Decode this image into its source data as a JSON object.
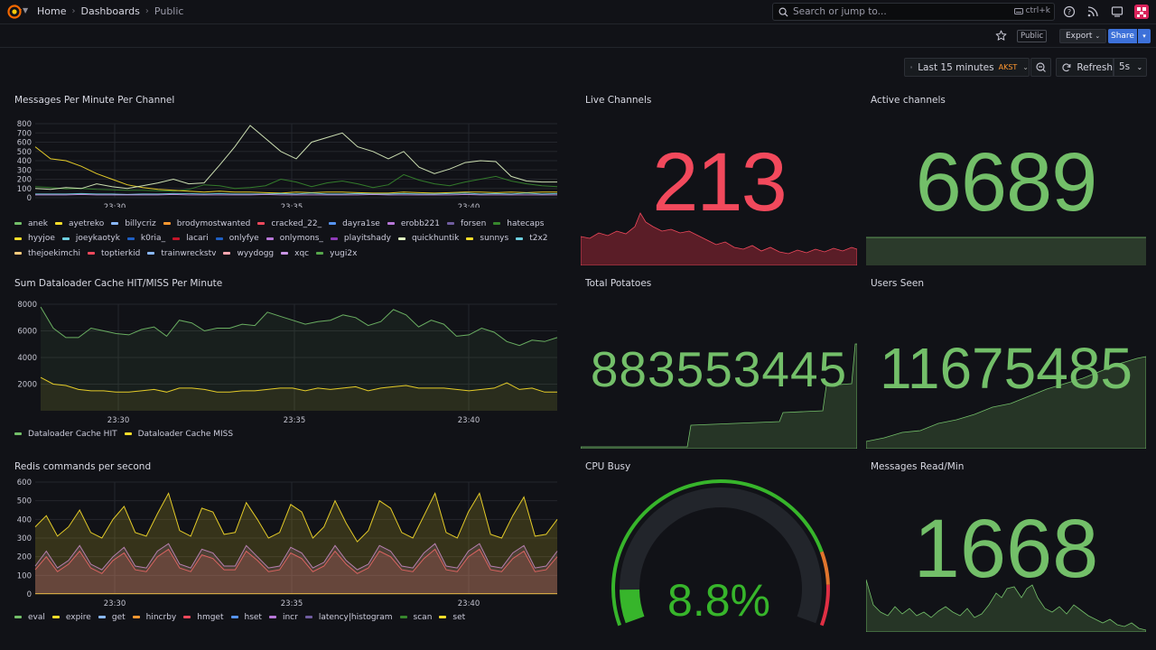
{
  "nav": {
    "breadcrumbs": [
      "Home",
      "Dashboards",
      "Public"
    ],
    "search_placeholder": "Search or jump to...",
    "search_shortcut": "ctrl+k",
    "public_badge": "Public",
    "export_label": "Export",
    "share_label": "Share"
  },
  "time": {
    "range_label": "Last 15 minutes",
    "timezone": "AKST",
    "refresh_label": "Refresh",
    "interval": "5s"
  },
  "panels": {
    "messages_per_minute": {
      "title": "Messages Per Minute Per Channel",
      "legend": [
        {
          "name": "anek",
          "color": "#73bf69"
        },
        {
          "name": "ayetreko",
          "color": "#fade2a"
        },
        {
          "name": "billycriz",
          "color": "#8ab8ff"
        },
        {
          "name": "brodymostwanted",
          "color": "#ff9830"
        },
        {
          "name": "cracked_22_",
          "color": "#f2495c"
        },
        {
          "name": "dayra1se",
          "color": "#5794f2"
        },
        {
          "name": "erobb221",
          "color": "#b877d9"
        },
        {
          "name": "forsen",
          "color": "#705da0"
        },
        {
          "name": "hatecaps",
          "color": "#37872d"
        },
        {
          "name": "hyyjoe",
          "color": "#fade2a"
        },
        {
          "name": "joeykaotyk",
          "color": "#6ed0e0"
        },
        {
          "name": "k0ria_",
          "color": "#1f60c4"
        },
        {
          "name": "lacari",
          "color": "#c4162a"
        },
        {
          "name": "onlyfye",
          "color": "#1f60c4"
        },
        {
          "name": "onlymons_",
          "color": "#b877d9"
        },
        {
          "name": "playitshady",
          "color": "#8f3bb8"
        },
        {
          "name": "quickhuntik",
          "color": "#e0f5c2"
        },
        {
          "name": "sunnys",
          "color": "#fade2a"
        },
        {
          "name": "t2x2",
          "color": "#6ed0e0"
        },
        {
          "name": "thejoekimchi",
          "color": "#ffcb7d"
        },
        {
          "name": "toptiеrkid",
          "color": "#f2495c"
        },
        {
          "name": "trainwreckstv",
          "color": "#8ab8ff"
        },
        {
          "name": "wyydogg",
          "color": "#ffa6b0"
        },
        {
          "name": "xqc",
          "color": "#ca95e5"
        },
        {
          "name": "yugi2x",
          "color": "#56a64b"
        }
      ]
    },
    "dataloader": {
      "title": "Sum Dataloader Cache HIT/MISS Per Minute",
      "legend": [
        {
          "name": "Dataloader Cache HIT",
          "color": "#73bf69"
        },
        {
          "name": "Dataloader Cache MISS",
          "color": "#fade2a"
        }
      ]
    },
    "redis": {
      "title": "Redis commands per second",
      "legend": [
        {
          "name": "eval",
          "color": "#73bf69"
        },
        {
          "name": "expire",
          "color": "#fade2a"
        },
        {
          "name": "get",
          "color": "#8ab8ff"
        },
        {
          "name": "hincrby",
          "color": "#ff9830"
        },
        {
          "name": "hmget",
          "color": "#f2495c"
        },
        {
          "name": "hset",
          "color": "#5794f2"
        },
        {
          "name": "incr",
          "color": "#b877d9"
        },
        {
          "name": "latency|histogram",
          "color": "#705da0"
        },
        {
          "name": "scan",
          "color": "#37872d"
        },
        {
          "name": "set",
          "color": "#fade2a"
        }
      ]
    },
    "live_channels": {
      "title": "Live Channels",
      "value": "213",
      "color": "#f2495c"
    },
    "active_channels": {
      "title": "Active channels",
      "value": "6689",
      "color": "#73bf69"
    },
    "total_potatoes": {
      "title": "Total Potatoes",
      "value": "883553445",
      "color": "#73bf69"
    },
    "users_seen": {
      "title": "Users Seen",
      "value": "11675485",
      "color": "#73bf69"
    },
    "cpu_busy": {
      "title": "CPU Busy",
      "value": "8.8%",
      "value_fraction": 0.088,
      "color": "#37b52b"
    },
    "messages_read": {
      "title": "Messages Read/Min",
      "value": "1668",
      "color": "#73bf69"
    }
  },
  "chart_data": [
    {
      "type": "line",
      "title": "Messages Per Minute Per Channel",
      "ylim": [
        0,
        800
      ],
      "yticks": [
        "0",
        "100",
        "200",
        "300",
        "400",
        "500",
        "600",
        "700",
        "800"
      ],
      "xticks": [
        "23:30",
        "23:35",
        "23:40"
      ],
      "series": [
        {
          "name": "hatecaps",
          "values": [
            120,
            110,
            95,
            100,
            90,
            85,
            80,
            80,
            75,
            70,
            90,
            140,
            130,
            100,
            110,
            130,
            200,
            170,
            120,
            160,
            180,
            150,
            110,
            140,
            250,
            190,
            150,
            130,
            170,
            200,
            230,
            180,
            150,
            130,
            120
          ]
        },
        {
          "name": "sunnys",
          "values": [
            550,
            420,
            400,
            340,
            260,
            200,
            140,
            110,
            90,
            80,
            70,
            60,
            70,
            60,
            60,
            55,
            50,
            60,
            55,
            60,
            60,
            55,
            50,
            50,
            60,
            55,
            50,
            55,
            60,
            60,
            55,
            60,
            55,
            60,
            60
          ]
        },
        {
          "name": "quickhuntik",
          "values": [
            100,
            90,
            110,
            100,
            150,
            120,
            100,
            130,
            160,
            200,
            150,
            160,
            350,
            550,
            780,
            640,
            500,
            420,
            600,
            650,
            700,
            550,
            500,
            420,
            500,
            330,
            260,
            310,
            380,
            400,
            390,
            230,
            180,
            170,
            170
          ]
        },
        {
          "name": "joeykaotyk",
          "values": [
            40,
            40,
            40,
            45,
            40,
            40,
            35,
            40,
            40,
            45,
            45,
            40,
            45,
            40,
            40,
            40,
            45,
            40,
            50,
            40,
            40,
            45,
            40,
            40,
            45,
            40,
            40,
            45,
            50,
            40,
            45,
            40,
            50,
            40,
            45
          ]
        },
        {
          "name": "xqc",
          "values": [
            30,
            30,
            30,
            35,
            30,
            30,
            30,
            30,
            30,
            35,
            30,
            30,
            30,
            30,
            30,
            35,
            30,
            30,
            30,
            30,
            30,
            30,
            35,
            30,
            30,
            30,
            30,
            30,
            35,
            30,
            30,
            30,
            30,
            30,
            30
          ]
        }
      ]
    },
    {
      "type": "line",
      "title": "Sum Dataloader Cache HIT/MISS Per Minute",
      "ylim": [
        0,
        8000
      ],
      "yticks": [
        "2000",
        "4000",
        "6000",
        "8000"
      ],
      "xticks": [
        "23:30",
        "23:35",
        "23:40"
      ],
      "series": [
        {
          "name": "Dataloader Cache HIT",
          "values": [
            7800,
            6200,
            5500,
            5500,
            6200,
            6000,
            5800,
            5700,
            6100,
            6300,
            5600,
            6800,
            6600,
            6000,
            6200,
            6200,
            6500,
            6400,
            7400,
            7100,
            6800,
            6500,
            6700,
            6800,
            7200,
            7000,
            6400,
            6700,
            7600,
            7200,
            6300,
            6800,
            6500,
            5600,
            5700,
            6200,
            5900,
            5200,
            4900,
            5300,
            5200,
            5500
          ]
        },
        {
          "name": "Dataloader Cache MISS",
          "values": [
            2500,
            2000,
            1900,
            1600,
            1500,
            1500,
            1400,
            1400,
            1500,
            1600,
            1400,
            1700,
            1700,
            1600,
            1400,
            1400,
            1500,
            1500,
            1600,
            1700,
            1700,
            1500,
            1700,
            1600,
            1700,
            1800,
            1500,
            1700,
            1800,
            1900,
            1700,
            1700,
            1700,
            1600,
            1500,
            1600,
            1700,
            2100,
            1600,
            1700,
            1400,
            1400
          ]
        }
      ]
    },
    {
      "type": "area",
      "title": "Redis commands per second",
      "ylim": [
        0,
        600
      ],
      "yticks": [
        "0",
        "100",
        "200",
        "300",
        "400",
        "500",
        "600"
      ],
      "xticks": [
        "23:30",
        "23:35",
        "23:40"
      ],
      "series": [
        {
          "name": "set",
          "values": [
            2,
            2,
            2,
            2,
            2,
            2,
            2,
            2,
            2,
            2,
            2,
            2,
            2,
            2,
            2,
            2,
            2,
            2,
            2,
            2,
            2,
            2,
            2,
            2,
            2,
            2,
            2,
            2,
            2,
            2,
            2,
            2,
            2,
            2,
            2,
            2,
            2,
            2,
            2,
            2,
            2,
            2,
            2,
            2,
            2,
            2,
            2,
            2
          ]
        },
        {
          "name": "hmget",
          "values": [
            130,
            200,
            120,
            160,
            230,
            140,
            110,
            180,
            220,
            130,
            120,
            200,
            240,
            140,
            120,
            210,
            190,
            130,
            130,
            230,
            180,
            120,
            130,
            220,
            190,
            120,
            150,
            230,
            160,
            110,
            140,
            230,
            200,
            130,
            120,
            190,
            240,
            130,
            120,
            200,
            240,
            130,
            120,
            190,
            230,
            120,
            130,
            200
          ]
        },
        {
          "name": "incr",
          "values": [
            150,
            230,
            140,
            180,
            260,
            160,
            130,
            200,
            250,
            150,
            140,
            230,
            270,
            160,
            140,
            240,
            220,
            150,
            150,
            260,
            200,
            140,
            150,
            250,
            220,
            140,
            170,
            260,
            180,
            130,
            160,
            260,
            230,
            150,
            140,
            220,
            270,
            150,
            140,
            230,
            270,
            150,
            140,
            220,
            260,
            140,
            150,
            230
          ]
        },
        {
          "name": "expire",
          "values": [
            360,
            420,
            310,
            360,
            450,
            330,
            300,
            400,
            470,
            330,
            310,
            430,
            540,
            340,
            310,
            460,
            440,
            320,
            330,
            490,
            400,
            300,
            330,
            480,
            440,
            300,
            360,
            500,
            380,
            280,
            340,
            500,
            460,
            330,
            300,
            420,
            540,
            330,
            300,
            440,
            540,
            320,
            300,
            420,
            520,
            310,
            320,
            400
          ]
        }
      ]
    }
  ]
}
